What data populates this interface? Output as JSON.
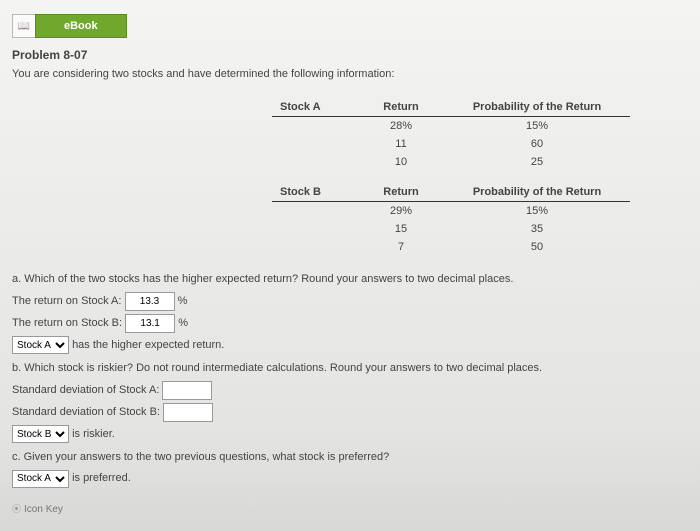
{
  "header": {
    "ebook_label": "eBook",
    "icon": "📖"
  },
  "problem_title": "Problem 8-07",
  "intro": "You are considering two stocks and have determined the following information:",
  "tableA": {
    "headers": [
      "Stock A",
      "Return",
      "Probability of the Return"
    ],
    "rows": [
      [
        "",
        "28%",
        "15%"
      ],
      [
        "",
        "11",
        "60"
      ],
      [
        "",
        "10",
        "25"
      ]
    ]
  },
  "tableB": {
    "headers": [
      "Stock B",
      "Return",
      "Probability of the Return"
    ],
    "rows": [
      [
        "",
        "29%",
        "15%"
      ],
      [
        "",
        "15",
        "35"
      ],
      [
        "",
        "7",
        "50"
      ]
    ]
  },
  "qa": {
    "prompt": "a. Which of the two stocks has the higher expected return? Round your answers to two decimal places.",
    "ra_label": "The return on Stock A:",
    "ra_val": "13.3",
    "pct": "%",
    "rb_label": "The return on Stock B:",
    "rb_val": "13.1",
    "sel_val": "Stock A",
    "sel_opts": [
      "Stock A",
      "Stock B"
    ],
    "sel_tail": "has the higher expected return."
  },
  "qb": {
    "prompt": "b. Which stock is riskier? Do not round intermediate calculations. Round your answers to two decimal places.",
    "sa_label": "Standard deviation of Stock A:",
    "sa_val": "",
    "sb_label": "Standard deviation of Stock B:",
    "sb_val": "",
    "sel_val": "Stock B",
    "sel_opts": [
      "Stock A",
      "Stock B"
    ],
    "sel_tail": "is riskier."
  },
  "qc": {
    "prompt": "c. Given your answers to the two previous questions, what stock is preferred?",
    "sel_val": "Stock A",
    "sel_opts": [
      "Stock A",
      "Stock B"
    ],
    "sel_tail": "is preferred."
  },
  "iconkey": "Icon Key"
}
